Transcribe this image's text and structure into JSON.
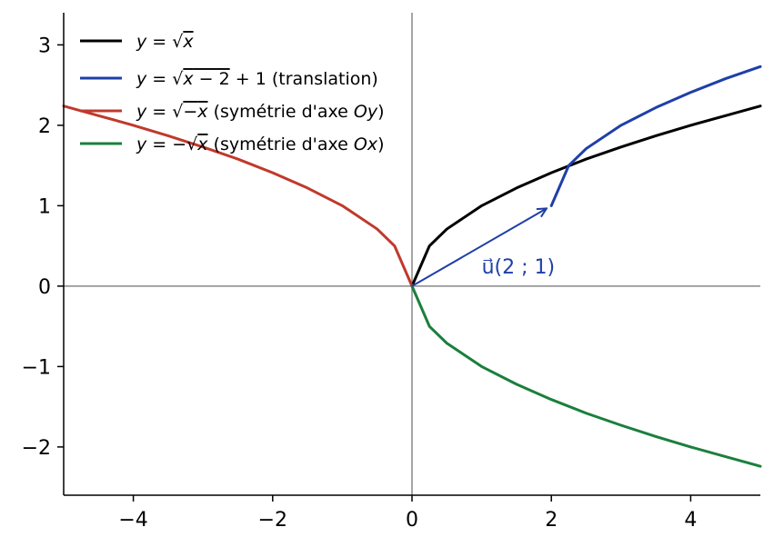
{
  "chart_data": {
    "type": "line",
    "title": "",
    "xlabel": "",
    "ylabel": "",
    "xlim": [
      -5,
      5
    ],
    "ylim": [
      -2.6,
      3.4
    ],
    "xticks": [
      -4,
      -2,
      0,
      2,
      4
    ],
    "yticks": [
      -2,
      -1,
      0,
      1,
      2,
      3
    ],
    "xtick_labels": [
      "−4",
      "−2",
      "0",
      "2",
      "4"
    ],
    "ytick_labels": [
      "−2",
      "−1",
      "0",
      "1",
      "2",
      "3"
    ],
    "grid": false,
    "legend_position": "top-left",
    "reference_lines": [
      {
        "orientation": "horizontal",
        "y": 0,
        "color": "#888888"
      },
      {
        "orientation": "vertical",
        "x": 0,
        "color": "#888888"
      }
    ],
    "series": [
      {
        "name": "y = √x",
        "color": "#000000",
        "x": [
          0,
          0.25,
          0.5,
          1,
          1.5,
          2,
          2.5,
          3,
          3.5,
          4,
          4.5,
          5
        ],
        "y": [
          0,
          0.5,
          0.71,
          1,
          1.22,
          1.41,
          1.58,
          1.73,
          1.87,
          2,
          2.12,
          2.24
        ]
      },
      {
        "name": "y = √(x − 2) + 1 (translation)",
        "color": "#1f3fa8",
        "x": [
          2,
          2.25,
          2.5,
          3,
          3.5,
          4,
          4.5,
          5
        ],
        "y": [
          1,
          1.5,
          1.71,
          2,
          2.22,
          2.41,
          2.58,
          2.73
        ]
      },
      {
        "name": "y = √(−x) (symétrie d'axe Oy)",
        "color": "#c0392b",
        "x": [
          -5,
          -4.5,
          -4,
          -3.5,
          -3,
          -2.5,
          -2,
          -1.5,
          -1,
          -0.5,
          -0.25,
          0
        ],
        "y": [
          2.24,
          2.12,
          2,
          1.87,
          1.73,
          1.58,
          1.41,
          1.22,
          1,
          0.71,
          0.5,
          0
        ]
      },
      {
        "name": "y = −√x (symétrie d'axe Ox)",
        "color": "#1a7f3c",
        "x": [
          0,
          0.25,
          0.5,
          1,
          1.5,
          2,
          2.5,
          3,
          3.5,
          4,
          4.5,
          5
        ],
        "y": [
          0,
          -0.5,
          -0.71,
          -1,
          -1.22,
          -1.41,
          -1.58,
          -1.73,
          -1.87,
          -2,
          -2.12,
          -2.24
        ]
      }
    ],
    "annotations": [
      {
        "kind": "arrow",
        "from": [
          0,
          0
        ],
        "to": [
          2,
          1
        ],
        "color": "#1f3fa8",
        "label": "u⃗(2 ; 1)",
        "label_position": [
          1,
          0.2
        ]
      }
    ]
  }
}
